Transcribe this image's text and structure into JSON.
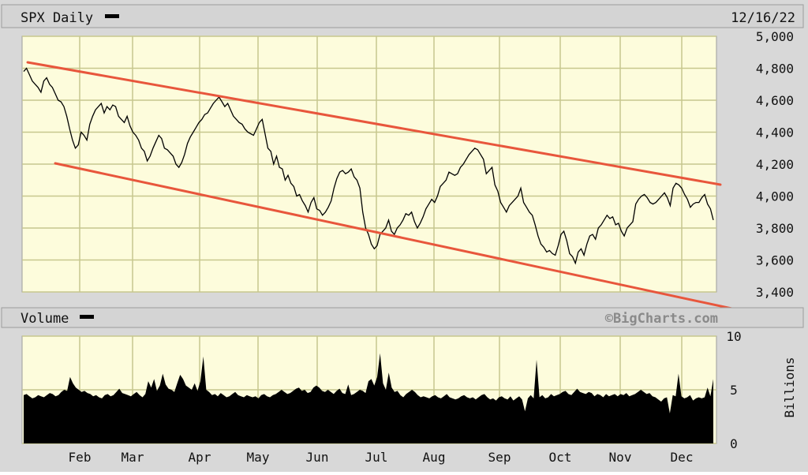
{
  "header": {
    "title": "SPX Daily",
    "date": "12/16/22"
  },
  "volume_header": {
    "title": "Volume",
    "credit": "©BigCharts.com"
  },
  "colors": {
    "background": "#d8d8d8",
    "plot_bg": "#fdfcdc",
    "grid": "#c7c78e",
    "trendline": "#e8563c",
    "price": "#000000",
    "volume": "#000000"
  },
  "chart_data": [
    {
      "type": "line",
      "title": "SPX Daily",
      "subtitle": "",
      "xlabel": "",
      "ylabel": "",
      "x_tick_labels": [
        "Feb",
        "Mar",
        "Apr",
        "May",
        "Jun",
        "Jul",
        "Aug",
        "Sep",
        "Oct",
        "Nov",
        "Dec"
      ],
      "yticks": [
        "5,000",
        "4,800",
        "4,600",
        "4,400",
        "4,200",
        "4,000",
        "3,800",
        "3,600",
        "3,400"
      ],
      "ylim": [
        3400,
        5000
      ],
      "grid": true,
      "series": [
        {
          "values": [
            4780,
            4800,
            4760,
            4720,
            4700,
            4680,
            4650,
            4720,
            4740,
            4700,
            4680,
            4640,
            4600,
            4590,
            4560,
            4500,
            4420,
            4350,
            4300,
            4320,
            4400,
            4380,
            4350,
            4450,
            4500,
            4540,
            4560,
            4580,
            4520,
            4560,
            4540,
            4570,
            4560,
            4500,
            4480,
            4460,
            4500,
            4440,
            4400,
            4380,
            4350,
            4300,
            4280,
            4220,
            4250,
            4300,
            4340,
            4380,
            4360,
            4300,
            4290,
            4270,
            4250,
            4200,
            4180,
            4210,
            4260,
            4330,
            4370,
            4400,
            4430,
            4460,
            4480,
            4510,
            4520,
            4550,
            4580,
            4600,
            4620,
            4590,
            4560,
            4580,
            4540,
            4500,
            4480,
            4460,
            4450,
            4420,
            4400,
            4390,
            4380,
            4420,
            4460,
            4480,
            4390,
            4300,
            4280,
            4200,
            4250,
            4180,
            4170,
            4100,
            4130,
            4080,
            4060,
            4000,
            4010,
            3970,
            3940,
            3900,
            3960,
            3990,
            3920,
            3910,
            3880,
            3900,
            3930,
            3970,
            4050,
            4110,
            4150,
            4160,
            4140,
            4150,
            4170,
            4120,
            4100,
            4050,
            3900,
            3800,
            3760,
            3700,
            3670,
            3690,
            3760,
            3780,
            3800,
            3850,
            3780,
            3760,
            3800,
            3820,
            3850,
            3890,
            3880,
            3900,
            3840,
            3800,
            3830,
            3870,
            3920,
            3950,
            3980,
            3960,
            4000,
            4060,
            4080,
            4100,
            4150,
            4140,
            4130,
            4140,
            4180,
            4200,
            4230,
            4260,
            4280,
            4300,
            4290,
            4260,
            4230,
            4140,
            4160,
            4180,
            4070,
            4030,
            3960,
            3930,
            3900,
            3940,
            3960,
            3980,
            4000,
            4050,
            3960,
            3930,
            3900,
            3880,
            3820,
            3750,
            3700,
            3680,
            3650,
            3660,
            3640,
            3630,
            3690,
            3760,
            3780,
            3720,
            3640,
            3620,
            3580,
            3650,
            3670,
            3630,
            3700,
            3750,
            3760,
            3730,
            3800,
            3820,
            3850,
            3880,
            3860,
            3870,
            3820,
            3830,
            3780,
            3750,
            3800,
            3820,
            3840,
            3950,
            3980,
            4000,
            4010,
            3990,
            3960,
            3950,
            3960,
            3980,
            4000,
            4020,
            3990,
            3940,
            4050,
            4080,
            4070,
            4050,
            4010,
            3980,
            3930,
            3950,
            3960,
            3960,
            3990,
            4010,
            3950,
            3920,
            3850
          ]
        }
      ]
    },
    {
      "type": "area",
      "title": "Volume",
      "xlabel": "",
      "ylabel": "Billions",
      "yticks": [
        "10",
        "5",
        "0"
      ],
      "ylim": [
        0,
        10
      ],
      "grid": true,
      "series": [
        {
          "values": [
            4.5,
            4.6,
            4.4,
            4.2,
            4.3,
            4.5,
            4.4,
            4.3,
            4.5,
            4.7,
            4.6,
            4.4,
            4.5,
            4.8,
            5.0,
            4.9,
            6.2,
            5.6,
            5.2,
            5.0,
            4.8,
            4.9,
            4.7,
            4.6,
            4.4,
            4.5,
            4.3,
            4.2,
            4.5,
            4.6,
            4.4,
            4.5,
            4.8,
            5.1,
            4.7,
            4.6,
            4.5,
            4.4,
            4.6,
            4.8,
            4.5,
            4.3,
            4.6,
            5.8,
            5.2,
            6.0,
            4.9,
            5.4,
            6.5,
            5.5,
            5.1,
            5.0,
            4.8,
            5.6,
            6.4,
            6.0,
            5.4,
            5.2,
            5.0,
            5.6,
            4.9,
            5.8,
            8.1,
            5.0,
            4.8,
            4.5,
            4.6,
            4.4,
            4.7,
            4.5,
            4.3,
            4.4,
            4.6,
            4.8,
            4.5,
            4.4,
            4.3,
            4.5,
            4.4,
            4.3,
            4.4,
            4.2,
            4.5,
            4.6,
            4.4,
            4.3,
            4.5,
            4.6,
            4.8,
            5.0,
            4.8,
            4.6,
            4.7,
            4.9,
            5.1,
            5.2,
            4.9,
            5.0,
            4.7,
            4.8,
            5.2,
            5.4,
            5.2,
            4.9,
            4.8,
            5.0,
            4.8,
            4.6,
            4.9,
            5.1,
            4.7,
            4.6,
            5.5,
            4.5,
            4.6,
            4.8,
            5.0,
            4.9,
            4.7,
            5.8,
            6.0,
            5.4,
            6.2,
            8.4,
            5.6,
            5.0,
            6.6,
            5.2,
            4.8,
            4.9,
            4.5,
            4.3,
            4.6,
            4.8,
            5.0,
            4.8,
            4.5,
            4.3,
            4.4,
            4.3,
            4.2,
            4.4,
            4.5,
            4.3,
            4.2,
            4.4,
            4.6,
            4.3,
            4.2,
            4.1,
            4.2,
            4.4,
            4.5,
            4.3,
            4.2,
            4.3,
            4.1,
            4.3,
            4.5,
            4.6,
            4.3,
            4.1,
            4.2,
            4.0,
            4.3,
            4.4,
            4.2,
            4.1,
            4.4,
            4.0,
            4.2,
            4.4,
            4.1,
            3.0,
            4.2,
            4.5,
            4.2,
            7.8,
            4.3,
            4.5,
            4.2,
            4.3,
            4.6,
            4.4,
            4.5,
            4.6,
            4.8,
            4.9,
            4.6,
            4.5,
            4.8,
            5.1,
            4.8,
            4.7,
            4.6,
            4.8,
            4.7,
            4.4,
            4.6,
            4.5,
            4.3,
            4.6,
            4.4,
            4.5,
            4.6,
            4.4,
            4.6,
            4.5,
            4.7,
            4.4,
            4.5,
            4.6,
            4.8,
            5.0,
            4.8,
            4.6,
            4.7,
            4.4,
            4.3,
            4.1,
            3.9,
            4.2,
            4.3,
            2.8,
            4.5,
            4.4,
            6.5,
            4.4,
            4.2,
            4.3,
            4.5,
            4.0,
            4.2,
            4.3,
            4.2,
            4.3,
            5.2,
            4.4,
            6.0
          ]
        }
      ]
    }
  ]
}
